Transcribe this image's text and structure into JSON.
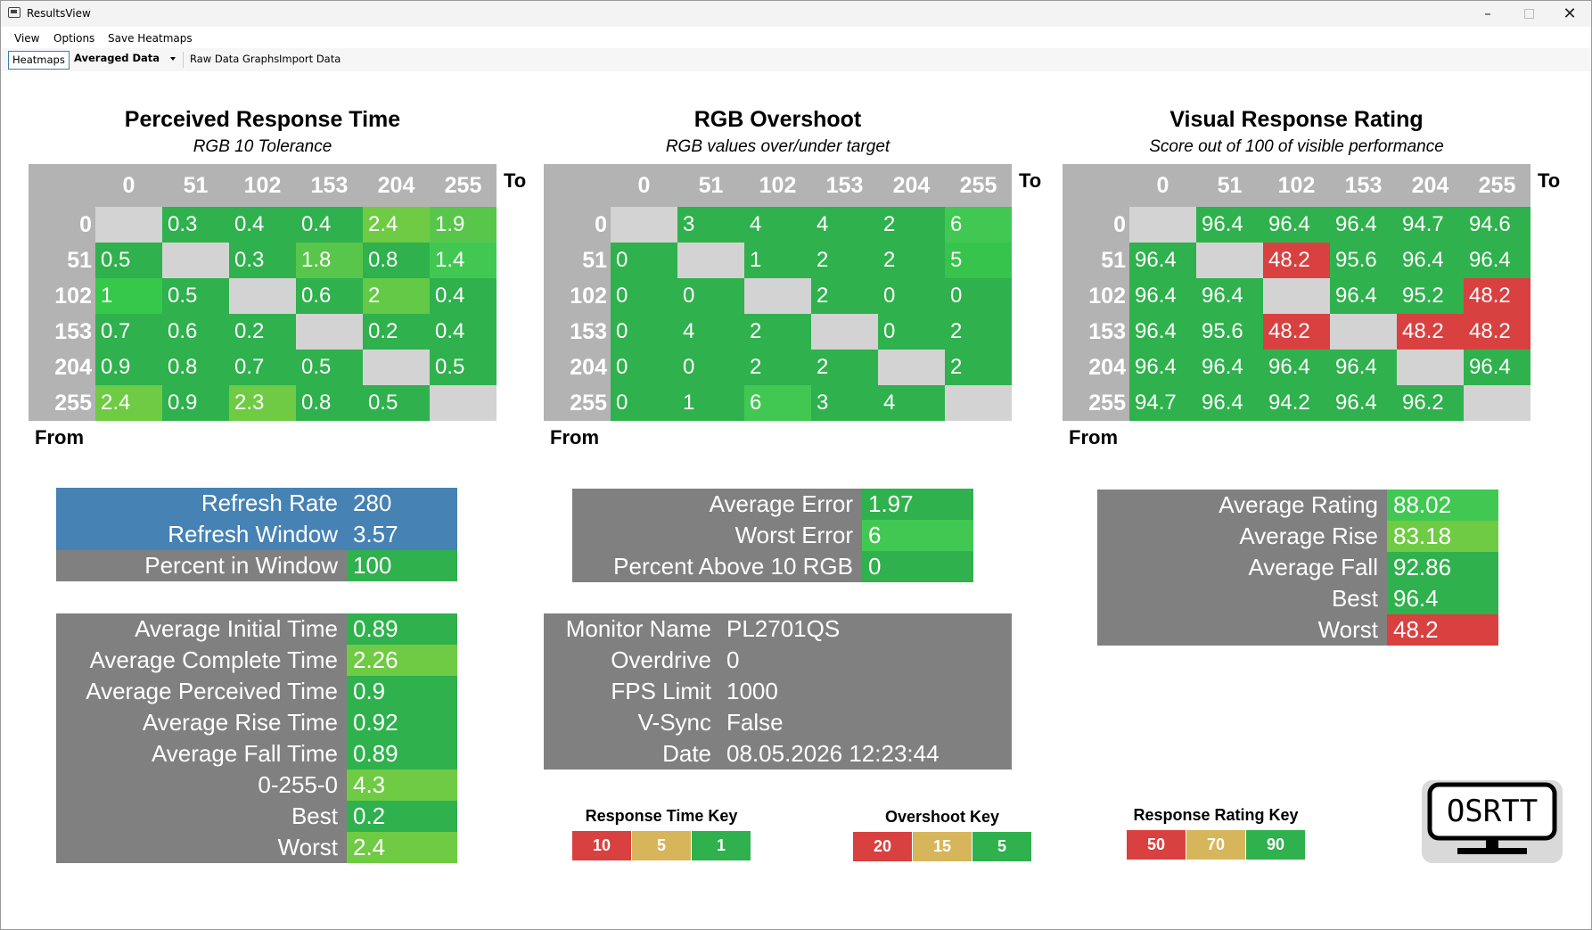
{
  "window": {
    "title": "ResultsView",
    "minimize_icon": "minimize-icon",
    "maximize_icon": "maximize-icon",
    "close_icon": "close-icon"
  },
  "menu": [
    "View",
    "Options",
    "Save Heatmaps"
  ],
  "toolbar": {
    "heatmaps_tab": "Heatmaps",
    "data_select": "Averaged Data",
    "raw_data_graphs": "Raw Data Graphs",
    "import_data": "Import Data"
  },
  "colors": {
    "green": "#2fb14d",
    "green_mid": "#41c852",
    "green_light": "#6fcb43",
    "gray_blank": "#d3d3d3",
    "red": "#d94040",
    "blue": "#4682b4",
    "panel_gray": "#808080",
    "header_gray": "#b3b3b3",
    "key_yellow": "#d7b55a"
  },
  "axis_labels": {
    "to": "To",
    "from": "From"
  },
  "axis_values": [
    "0",
    "51",
    "102",
    "153",
    "204",
    "255"
  ],
  "heatmaps": [
    {
      "title": "Perceived Response Time",
      "subtitle": "RGB 10 Tolerance",
      "rows": [
        [
          "",
          "0.3",
          "0.4",
          "0.4",
          "2.4",
          "1.9"
        ],
        [
          "0.5",
          "",
          "0.3",
          "1.8",
          "0.8",
          "1.4"
        ],
        [
          "1",
          "0.5",
          "",
          "0.6",
          "2",
          "0.4"
        ],
        [
          "0.7",
          "0.6",
          "0.2",
          "",
          "0.2",
          "0.4"
        ],
        [
          "0.9",
          "0.8",
          "0.7",
          "0.5",
          "",
          "0.5"
        ],
        [
          "2.4",
          "0.9",
          "2.3",
          "0.8",
          "0.5",
          ""
        ]
      ],
      "cell_colors": [
        [
          "#d3d3d3",
          "#2fb14d",
          "#2fb14d",
          "#2fb14d",
          "#6fcb43",
          "#58c64a"
        ],
        [
          "#2fb14d",
          "#d3d3d3",
          "#2fb14d",
          "#58c64a",
          "#2fb14d",
          "#41c852"
        ],
        [
          "#35c84a",
          "#2fb14d",
          "#d3d3d3",
          "#2fb14d",
          "#62ca46",
          "#2fb14d"
        ],
        [
          "#2fb14d",
          "#2fb14d",
          "#2fb14d",
          "#d3d3d3",
          "#2fb14d",
          "#2fb14d"
        ],
        [
          "#2fb14d",
          "#2fb14d",
          "#2fb14d",
          "#2fb14d",
          "#d3d3d3",
          "#2fb14d"
        ],
        [
          "#6fcb43",
          "#2fb14d",
          "#6fcb43",
          "#2fb14d",
          "#2fb14d",
          "#d3d3d3"
        ]
      ]
    },
    {
      "title": "RGB Overshoot",
      "subtitle": "RGB values over/under target",
      "rows": [
        [
          "",
          "3",
          "4",
          "4",
          "2",
          "6"
        ],
        [
          "0",
          "",
          "1",
          "2",
          "2",
          "5"
        ],
        [
          "0",
          "0",
          "",
          "2",
          "0",
          "0"
        ],
        [
          "0",
          "4",
          "2",
          "",
          "0",
          "2"
        ],
        [
          "0",
          "0",
          "2",
          "2",
          "",
          "2"
        ],
        [
          "0",
          "1",
          "6",
          "3",
          "4",
          ""
        ]
      ],
      "cell_colors": [
        [
          "#d3d3d3",
          "#2fb14d",
          "#2fb14d",
          "#2fb14d",
          "#2fb14d",
          "#41c852"
        ],
        [
          "#2fb14d",
          "#d3d3d3",
          "#2fb14d",
          "#2fb14d",
          "#2fb14d",
          "#37c44c"
        ],
        [
          "#2fb14d",
          "#2fb14d",
          "#d3d3d3",
          "#2fb14d",
          "#2fb14d",
          "#2fb14d"
        ],
        [
          "#2fb14d",
          "#2fb14d",
          "#2fb14d",
          "#d3d3d3",
          "#2fb14d",
          "#2fb14d"
        ],
        [
          "#2fb14d",
          "#2fb14d",
          "#2fb14d",
          "#2fb14d",
          "#d3d3d3",
          "#2fb14d"
        ],
        [
          "#2fb14d",
          "#2fb14d",
          "#41c852",
          "#2fb14d",
          "#2fb14d",
          "#d3d3d3"
        ]
      ]
    },
    {
      "title": "Visual Response Rating",
      "subtitle": "Score out of 100 of visible performance",
      "rows": [
        [
          "",
          "96.4",
          "96.4",
          "96.4",
          "94.7",
          "94.6"
        ],
        [
          "96.4",
          "",
          "48.2",
          "95.6",
          "96.4",
          "96.4"
        ],
        [
          "96.4",
          "96.4",
          "",
          "96.4",
          "95.2",
          "48.2"
        ],
        [
          "96.4",
          "95.6",
          "48.2",
          "",
          "48.2",
          "48.2"
        ],
        [
          "96.4",
          "96.4",
          "96.4",
          "96.4",
          "",
          "96.4"
        ],
        [
          "94.7",
          "96.4",
          "94.2",
          "96.4",
          "96.2",
          ""
        ]
      ],
      "cell_colors": [
        [
          "#d3d3d3",
          "#2fb14d",
          "#2fb14d",
          "#2fb14d",
          "#2fb14d",
          "#2fb14d"
        ],
        [
          "#2fb14d",
          "#d3d3d3",
          "#d94040",
          "#2fb14d",
          "#2fb14d",
          "#2fb14d"
        ],
        [
          "#2fb14d",
          "#2fb14d",
          "#d3d3d3",
          "#2fb14d",
          "#2fb14d",
          "#d94040"
        ],
        [
          "#2fb14d",
          "#2fb14d",
          "#d94040",
          "#d3d3d3",
          "#d94040",
          "#d94040"
        ],
        [
          "#2fb14d",
          "#2fb14d",
          "#2fb14d",
          "#2fb14d",
          "#d3d3d3",
          "#2fb14d"
        ],
        [
          "#2fb14d",
          "#2fb14d",
          "#2fb14d",
          "#2fb14d",
          "#2fb14d",
          "#d3d3d3"
        ]
      ]
    }
  ],
  "panels": {
    "refresh": [
      {
        "label": "Refresh Rate",
        "value": "280",
        "label_color": "#4682b4",
        "value_color": "#4682b4"
      },
      {
        "label": "Refresh Window",
        "value": "3.57",
        "label_color": "#4682b4",
        "value_color": "#4682b4"
      },
      {
        "label": "Percent in Window",
        "value": "100",
        "label_color": "#808080",
        "value_color": "#2fb14d"
      }
    ],
    "times": [
      {
        "label": "Average Initial Time",
        "value": "0.89",
        "value_color": "#2fb14d"
      },
      {
        "label": "Average Complete Time",
        "value": "2.26",
        "value_color": "#6fcb43"
      },
      {
        "label": "Average Perceived Time",
        "value": "0.9",
        "value_color": "#2fb14d"
      },
      {
        "label": "Average Rise Time",
        "value": "0.92",
        "value_color": "#2fb14d"
      },
      {
        "label": "Average Fall Time",
        "value": "0.89",
        "value_color": "#2fb14d"
      },
      {
        "label": "0-255-0",
        "value": "4.3",
        "value_color": "#6fcb43"
      },
      {
        "label": "Best",
        "value": "0.2",
        "value_color": "#2fb14d"
      },
      {
        "label": "Worst",
        "value": "2.4",
        "value_color": "#6fcb43"
      }
    ],
    "error": [
      {
        "label": "Average Error",
        "value": "1.97",
        "value_color": "#2fb14d"
      },
      {
        "label": "Worst Error",
        "value": "6",
        "value_color": "#41c852"
      },
      {
        "label": "Percent Above 10 RGB",
        "value": "0",
        "value_color": "#2fb14d"
      }
    ],
    "monitor": [
      {
        "label": "Monitor Name",
        "value": "PL2701QS"
      },
      {
        "label": "Overdrive",
        "value": "0"
      },
      {
        "label": "FPS Limit",
        "value": "1000"
      },
      {
        "label": "V-Sync",
        "value": "False"
      },
      {
        "label": "Date",
        "value": "08.05.2026 12:23:44"
      }
    ],
    "rating": [
      {
        "label": "Average Rating",
        "value": "88.02",
        "value_color": "#41c852"
      },
      {
        "label": "Average Rise",
        "value": "83.18",
        "value_color": "#6fcb43"
      },
      {
        "label": "Average Fall",
        "value": "92.86",
        "value_color": "#2fb14d"
      },
      {
        "label": "Best",
        "value": "96.4",
        "value_color": "#2fb14d"
      },
      {
        "label": "Worst",
        "value": "48.2",
        "value_color": "#d94040"
      }
    ]
  },
  "keys": [
    {
      "title": "Response Time Key",
      "values": [
        "10",
        "5",
        "1"
      ]
    },
    {
      "title": "Overshoot Key",
      "values": [
        "20",
        "15",
        "5"
      ]
    },
    {
      "title": "Response Rating Key",
      "values": [
        "50",
        "70",
        "90"
      ]
    }
  ],
  "logo_text": "OSRTT"
}
